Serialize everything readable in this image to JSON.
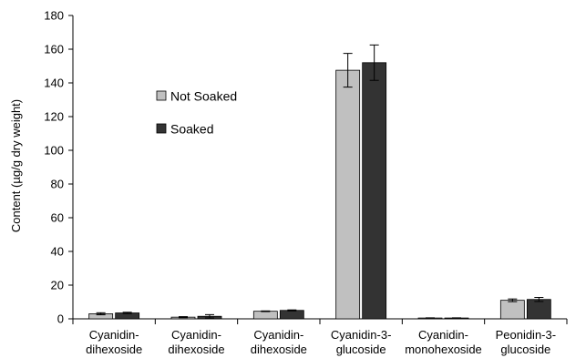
{
  "chart_data": {
    "type": "bar",
    "ylabel": "Content (µg/g dry weight)",
    "ylim": [
      0,
      180
    ],
    "yticks": [
      0,
      20,
      40,
      60,
      80,
      100,
      120,
      140,
      160,
      180
    ],
    "categories": [
      [
        "Cyanidin-",
        "dihexoside"
      ],
      [
        "Cyanidin-",
        "dihexoside"
      ],
      [
        "Cyanidin-",
        "dihexoside"
      ],
      [
        "Cyanidin-3-",
        "glucoside"
      ],
      [
        "Cyanidin-",
        "monohexoside"
      ],
      [
        "Peonidin-3-",
        "glucoside"
      ]
    ],
    "series": [
      {
        "name": "Not Soaked",
        "color": "#c0c0c0",
        "values": [
          3.0,
          1.0,
          4.5,
          147.5,
          0.5,
          11.0
        ],
        "errors": [
          0.6,
          0.3,
          0.2,
          10.0,
          0.1,
          0.8
        ]
      },
      {
        "name": "Soaked",
        "color": "#333333",
        "values": [
          3.5,
          1.5,
          5.0,
          152.0,
          0.5,
          11.5
        ],
        "errors": [
          0.4,
          1.0,
          0.3,
          10.5,
          0.1,
          1.2
        ]
      }
    ],
    "legend": {
      "position": "upper-left"
    },
    "grid": false
  }
}
